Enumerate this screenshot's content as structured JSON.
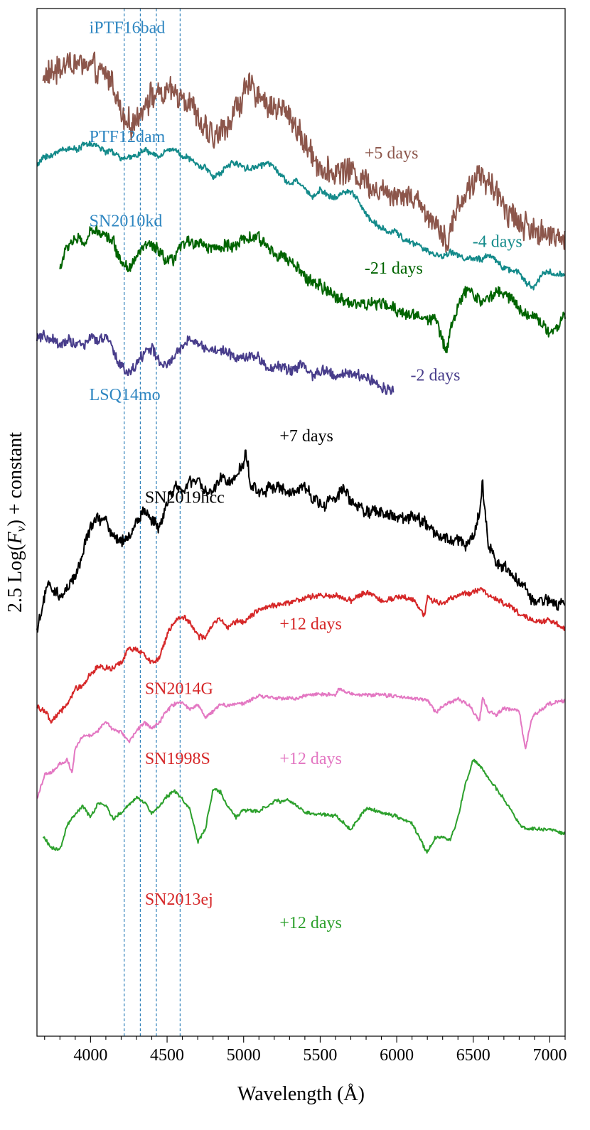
{
  "chart_data": {
    "type": "line",
    "title": "",
    "xlabel": "Wavelength (Å)",
    "ylabel": "2.5 Log(F_ν) + constant",
    "ylabel_parts": {
      "prefix": "2.5 Log(",
      "symbol": "F",
      "subscript": "ν",
      "suffix": ") + constant"
    },
    "xlim": [
      3650,
      7100
    ],
    "ylim": [
      0,
      100
    ],
    "x_ticks": [
      4000,
      4500,
      5000,
      5500,
      6000,
      6500,
      7000
    ],
    "x_tick_labels": [
      "4000",
      "4500",
      "5000",
      "5500",
      "6000",
      "6500",
      "7000"
    ],
    "x_minor_step": 100,
    "grid": false,
    "reference_lines": {
      "color": "#1f77b4",
      "style": "dashed",
      "x": [
        4220,
        4325,
        4430,
        4585
      ]
    },
    "series": [
      {
        "name": "iPTF16bad",
        "phase": "+5 days",
        "color": "#8c564b",
        "noise": 2.2,
        "x": [
          3690,
          3750,
          3800,
          3850,
          3900,
          3950,
          4000,
          4050,
          4100,
          4150,
          4200,
          4250,
          4300,
          4350,
          4400,
          4450,
          4500,
          4550,
          4600,
          4650,
          4700,
          4750,
          4800,
          4850,
          4900,
          4950,
          5000,
          5050,
          5100,
          5150,
          5200,
          5300,
          5400,
          5500,
          5550,
          5600,
          5700,
          5800,
          5900,
          6000,
          6100,
          6200,
          6300,
          6330,
          6400,
          6450,
          6500,
          6550,
          6600,
          6700,
          6800,
          6900,
          7000,
          7050,
          7100
        ],
        "y": [
          93.4,
          93.7,
          94.3,
          94.8,
          94.6,
          94.6,
          94.3,
          93.7,
          93.5,
          92.9,
          89.5,
          88.7,
          88.9,
          91.0,
          91.5,
          91.5,
          91.7,
          91.8,
          91.5,
          91.0,
          89.2,
          88.1,
          87.4,
          87.8,
          89.0,
          90.2,
          91.7,
          92.3,
          91.8,
          90.5,
          90.5,
          89.8,
          86.7,
          84.8,
          83.9,
          84.2,
          84.3,
          83.2,
          82.3,
          82.1,
          81.8,
          80.0,
          78.5,
          77.2,
          80.8,
          82.0,
          83.2,
          84.0,
          82.8,
          80.9,
          79.2,
          78.3,
          77.8,
          78.3,
          77.6
        ]
      },
      {
        "name": "PTF12dam",
        "phase": "-4 days",
        "color": "#138a8a",
        "noise": 0.5,
        "x": [
          3650,
          3700,
          3750,
          3800,
          3850,
          3900,
          3950,
          4000,
          4050,
          4100,
          4150,
          4200,
          4250,
          4300,
          4350,
          4400,
          4450,
          4500,
          4550,
          4600,
          4650,
          4700,
          4750,
          4800,
          4850,
          4900,
          4950,
          5000,
          5050,
          5100,
          5150,
          5200,
          5250,
          5300,
          5350,
          5400,
          5450,
          5500,
          5550,
          5600,
          5650,
          5700,
          5750,
          5800,
          5850,
          5900,
          5950,
          6000,
          6050,
          6100,
          6150,
          6200,
          6250,
          6300,
          6350,
          6400,
          6450,
          6500,
          6550,
          6600,
          6650,
          6700,
          6750,
          6800,
          6850,
          6900,
          6950,
          7000,
          7050,
          7100
        ],
        "y": [
          84.6,
          85.7,
          85.6,
          86.3,
          86.4,
          86.3,
          86.7,
          86.8,
          86.6,
          86.1,
          86.0,
          85.4,
          85.4,
          85.8,
          86.2,
          85.8,
          85.6,
          86.2,
          86.3,
          85.7,
          85.3,
          84.7,
          84.5,
          83.7,
          83.9,
          84.8,
          85.0,
          84.6,
          84.4,
          84.7,
          84.9,
          84.7,
          83.6,
          82.9,
          83.2,
          82.5,
          81.6,
          82.4,
          81.8,
          81.6,
          82.1,
          82.2,
          81.4,
          79.9,
          79.2,
          78.6,
          78.3,
          78.2,
          77.5,
          77.2,
          76.9,
          76.4,
          76.0,
          75.9,
          76.3,
          76.0,
          75.6,
          75.7,
          75.5,
          75.9,
          75.5,
          74.8,
          74.5,
          74.4,
          73.2,
          72.9,
          74.2,
          74.5,
          74.0,
          74.3
        ]
      },
      {
        "name": "SN2010kd",
        "phase": "-21 days",
        "color": "#006400",
        "noise": 1.0,
        "x": [
          3800,
          3850,
          3900,
          3950,
          4000,
          4050,
          4100,
          4150,
          4200,
          4250,
          4300,
          4350,
          4400,
          4450,
          4500,
          4550,
          4600,
          4650,
          4700,
          4750,
          4800,
          4850,
          4900,
          4950,
          5000,
          5050,
          5100,
          5150,
          5200,
          5300,
          5400,
          5500,
          5550,
          5600,
          5700,
          5800,
          5900,
          6000,
          6100,
          6200,
          6250,
          6300,
          6330,
          6350,
          6400,
          6450,
          6500,
          6550,
          6600,
          6650,
          6700,
          6750,
          6800,
          6850,
          6900,
          6950,
          7000,
          7050,
          7100
        ],
        "y": [
          74.7,
          76.9,
          77.7,
          77.0,
          78.1,
          78.5,
          78.0,
          77.2,
          75.4,
          74.8,
          75.7,
          77.0,
          76.8,
          76.3,
          75.2,
          75.6,
          77.1,
          77.3,
          77.3,
          76.9,
          76.8,
          76.6,
          77.1,
          76.9,
          77.4,
          77.7,
          77.6,
          76.9,
          76.4,
          75.4,
          73.9,
          73.0,
          72.5,
          72.0,
          71.4,
          71.2,
          71.3,
          70.6,
          70.2,
          69.8,
          70.1,
          67.6,
          66.7,
          69.0,
          71.1,
          72.3,
          72.4,
          71.6,
          71.7,
          72.6,
          72.2,
          71.9,
          70.9,
          70.3,
          70.0,
          69.4,
          68.6,
          68.9,
          70.2
        ]
      },
      {
        "name": "LSQ14mo",
        "phase": "-2 days",
        "color": "#483d8b",
        "noise": 0.9,
        "x": [
          3650,
          3700,
          3750,
          3800,
          3850,
          3900,
          3950,
          4000,
          4050,
          4100,
          4150,
          4200,
          4250,
          4300,
          4350,
          4400,
          4450,
          4500,
          4550,
          4600,
          4650,
          4700,
          4750,
          4800,
          4850,
          4900,
          4950,
          5000,
          5050,
          5100,
          5150,
          5200,
          5250,
          5300,
          5350,
          5400,
          5450,
          5500,
          5550,
          5600,
          5650,
          5700,
          5750,
          5800,
          5850,
          5900,
          5950,
          5980
        ],
        "y": [
          67.9,
          68.0,
          67.8,
          67.0,
          67.9,
          67.4,
          67.1,
          68.0,
          67.7,
          68.0,
          66.6,
          65.3,
          64.5,
          65.2,
          66.7,
          66.9,
          65.6,
          65.1,
          66.1,
          67.2,
          68.0,
          67.3,
          67.0,
          66.7,
          66.7,
          66.6,
          65.9,
          66.2,
          66.3,
          65.8,
          65.1,
          64.9,
          65.2,
          64.9,
          64.9,
          65.4,
          64.1,
          64.7,
          64.7,
          64.2,
          64.4,
          64.5,
          64.3,
          64.1,
          63.8,
          63.1,
          62.9,
          63.0
        ]
      },
      {
        "name": "SN2019hcc",
        "phase": "+7 days",
        "color": "#000000",
        "noise": 1.0,
        "x": [
          3650,
          3690,
          3720,
          3750,
          3800,
          3850,
          3900,
          3950,
          4000,
          4050,
          4100,
          4150,
          4200,
          4250,
          4300,
          4350,
          4400,
          4450,
          4500,
          4550,
          4600,
          4650,
          4700,
          4750,
          4800,
          4850,
          4900,
          4950,
          5000,
          5010,
          5050,
          5100,
          5150,
          5200,
          5300,
          5400,
          5500,
          5600,
          5650,
          5700,
          5800,
          5900,
          6000,
          6100,
          6200,
          6300,
          6400,
          6450,
          6500,
          6550,
          6560,
          6600,
          6650,
          6700,
          6800,
          6900,
          7000,
          7050,
          7100
        ],
        "y": [
          39.6,
          42.1,
          43.9,
          43.4,
          42.7,
          43.5,
          44.5,
          47.2,
          49.6,
          50.4,
          50.4,
          48.6,
          48.2,
          48.5,
          50.1,
          51.1,
          50.4,
          49.4,
          52.1,
          53.7,
          53.0,
          53.7,
          54.2,
          52.9,
          52.9,
          54.3,
          54.0,
          54.4,
          55.7,
          57.0,
          53.6,
          53.0,
          53.3,
          53.6,
          52.7,
          53.4,
          51.8,
          52.1,
          53.6,
          51.9,
          51.1,
          51.0,
          50.4,
          50.6,
          49.8,
          48.4,
          48.3,
          47.8,
          48.5,
          51.6,
          53.7,
          47.7,
          46.2,
          45.6,
          44.2,
          42.4,
          42.4,
          42.0,
          42.4
        ]
      },
      {
        "name": "SN2014G",
        "phase": "+12 days",
        "color": "#d62728",
        "noise": 0.45,
        "x": [
          3650,
          3700,
          3740,
          3800,
          3850,
          3900,
          3950,
          4000,
          4050,
          4100,
          4150,
          4200,
          4250,
          4300,
          4350,
          4400,
          4450,
          4500,
          4550,
          4600,
          4650,
          4700,
          4750,
          4800,
          4850,
          4900,
          4950,
          5000,
          5100,
          5200,
          5300,
          5400,
          5500,
          5600,
          5700,
          5800,
          5900,
          6000,
          6100,
          6180,
          6200,
          6300,
          6400,
          6500,
          6550,
          6600,
          6700,
          6800,
          6900,
          7000,
          7100
        ],
        "y": [
          32.1,
          31.7,
          30.5,
          31.6,
          32.3,
          33.8,
          34.1,
          35.3,
          35.9,
          35.8,
          35.8,
          36.3,
          37.7,
          37.7,
          37.0,
          36.4,
          36.8,
          39.1,
          40.4,
          40.9,
          40.3,
          38.9,
          38.8,
          40.2,
          40.6,
          39.8,
          40.4,
          40.4,
          41.5,
          41.9,
          42.2,
          42.6,
          42.9,
          42.9,
          42.4,
          43.2,
          42.4,
          42.8,
          42.6,
          40.9,
          42.6,
          42.1,
          43.0,
          43.2,
          43.6,
          42.9,
          42.2,
          41.1,
          40.3,
          40.4,
          39.7
        ]
      },
      {
        "name": "SN1998S",
        "phase": "+12 days",
        "color": "#e377c2",
        "noise": 0.3,
        "x": [
          3650,
          3700,
          3750,
          3800,
          3850,
          3880,
          3900,
          3950,
          4000,
          4050,
          4100,
          4150,
          4200,
          4250,
          4300,
          4350,
          4400,
          4450,
          4500,
          4550,
          4600,
          4650,
          4700,
          4750,
          4800,
          4850,
          4900,
          5000,
          5100,
          5200,
          5300,
          5400,
          5500,
          5600,
          5620,
          5700,
          5800,
          5900,
          6000,
          6100,
          6200,
          6260,
          6300,
          6400,
          6480,
          6540,
          6560,
          6600,
          6650,
          6700,
          6800,
          6840,
          6880,
          6900,
          7000,
          7100
        ],
        "y": [
          23.0,
          25.5,
          25.7,
          26.5,
          26.9,
          25.6,
          28.0,
          29.2,
          29.2,
          29.8,
          30.6,
          29.8,
          29.6,
          28.6,
          29.7,
          30.6,
          30.0,
          30.5,
          31.8,
          32.3,
          32.5,
          31.8,
          32.3,
          31.1,
          31.6,
          32.3,
          32.2,
          32.4,
          33.1,
          32.9,
          32.8,
          33.1,
          33.3,
          33.1,
          33.8,
          33.3,
          33.2,
          33.2,
          33.1,
          32.9,
          32.7,
          31.5,
          32.2,
          32.8,
          32.1,
          30.6,
          33.0,
          31.5,
          31.3,
          31.9,
          31.7,
          27.8,
          30.8,
          31.3,
          32.4,
          32.6
        ]
      },
      {
        "name": "SN2013ej",
        "phase": "+12 days",
        "color": "#2ca02c",
        "noise": 0.3,
        "x": [
          3690,
          3750,
          3800,
          3850,
          3900,
          3950,
          4000,
          4050,
          4100,
          4150,
          4200,
          4250,
          4300,
          4350,
          4400,
          4450,
          4500,
          4550,
          4600,
          4650,
          4700,
          4750,
          4800,
          4850,
          4900,
          4950,
          5000,
          5100,
          5200,
          5300,
          5400,
          5500,
          5600,
          5700,
          5800,
          5900,
          6000,
          6100,
          6180,
          6200,
          6250,
          6300,
          6350,
          6400,
          6450,
          6500,
          6550,
          6600,
          6650,
          6700,
          6750,
          6800,
          6850,
          6900,
          6950,
          7000,
          7050,
          7100
        ],
        "y": [
          19.4,
          18.3,
          18.1,
          20.6,
          21.7,
          22.3,
          21.3,
          22.7,
          22.5,
          21.1,
          21.8,
          22.5,
          23.2,
          22.8,
          21.7,
          22.4,
          23.4,
          23.8,
          23.1,
          22.1,
          18.9,
          20.2,
          24.0,
          23.7,
          22.3,
          21.3,
          22.0,
          21.9,
          22.9,
          22.9,
          21.8,
          21.6,
          21.5,
          20.1,
          22.2,
          21.8,
          21.3,
          20.7,
          18.4,
          17.9,
          19.3,
          19.4,
          19.1,
          21.3,
          24.6,
          26.9,
          26.1,
          25.1,
          24.1,
          23.1,
          21.9,
          20.6,
          20.2,
          20.2,
          20.1,
          20.2,
          19.9,
          19.7
        ]
      }
    ],
    "annotations": [
      {
        "text": "iPTF16bad",
        "color": "#2e86c1",
        "x": 3992,
        "y": 97.6
      },
      {
        "text": "+5 days",
        "color": "#8c564b",
        "x": 5790,
        "y": 85.4
      },
      {
        "text": "PTF12dam",
        "color": "#2e86c1",
        "x": 3992,
        "y": 87.0
      },
      {
        "text": "SN2010kd",
        "color": "#2e86c1",
        "x": 3992,
        "y": 78.8
      },
      {
        "text": "-4 days",
        "color": "#138a8a",
        "x": 6495,
        "y": 76.8
      },
      {
        "text": "-21 days",
        "color": "#006400",
        "x": 5790,
        "y": 74.2
      },
      {
        "text": "-2 days",
        "color": "#483d8b",
        "x": 6090,
        "y": 63.8
      },
      {
        "text": "LSQ14mo",
        "color": "#2e86c1",
        "x": 3992,
        "y": 61.9
      },
      {
        "text": "+7 days",
        "color": "#000000",
        "x": 5235,
        "y": 57.9
      },
      {
        "text": "SN2019hcc",
        "color": "#000000",
        "x": 4355,
        "y": 51.9
      },
      {
        "text": "+12 days",
        "color": "#d62728",
        "x": 5235,
        "y": 39.6
      },
      {
        "text": "SN2014G",
        "color": "#d62728",
        "x": 4355,
        "y": 33.3
      },
      {
        "text": "SN1998S",
        "color": "#d62728",
        "x": 4355,
        "y": 26.5
      },
      {
        "text": "+12 days",
        "color": "#e377c2",
        "x": 5235,
        "y": 26.5
      },
      {
        "text": "SN2013ej",
        "color": "#d62728",
        "x": 4355,
        "y": 12.8
      },
      {
        "text": "+12 days",
        "color": "#2ca02c",
        "x": 5235,
        "y": 10.5
      }
    ]
  }
}
